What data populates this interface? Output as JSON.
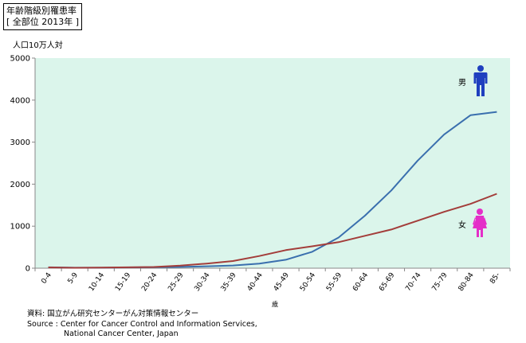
{
  "header": {
    "title": "年齢階級別罹患率",
    "subtitle": "[ 全部位 2013年 ]"
  },
  "colors": {
    "plot_bg": "#dbf5eb",
    "male": "#3a6fae",
    "female": "#a33d3a",
    "male_icon": "#1f3fbf",
    "female_icon": "#e42fc8"
  },
  "chart_data": {
    "type": "line",
    "title": "年齢階級別罹患率 [ 全部位 2013年 ]",
    "ylabel": "人口10万人対",
    "xlabel": "歳",
    "ylim": [
      0,
      5000
    ],
    "yticks": [
      0,
      1000,
      2000,
      3000,
      4000,
      5000
    ],
    "grid": false,
    "legend": "inline labels at line ends",
    "categories": [
      "0-4",
      "5-9",
      "10-14",
      "15-19",
      "20-24",
      "25-29",
      "30-34",
      "35-39",
      "40-44",
      "45-49",
      "50-54",
      "55-59",
      "60-64",
      "65-69",
      "70-74",
      "75-79",
      "80-84",
      "85-"
    ],
    "series": [
      {
        "name": "男",
        "values": [
          20,
          12,
          12,
          18,
          22,
          30,
          45,
          65,
          110,
          200,
          390,
          730,
          1250,
          1850,
          2560,
          3180,
          3640,
          3720
        ]
      },
      {
        "name": "女",
        "values": [
          18,
          10,
          14,
          20,
          28,
          60,
          110,
          170,
          290,
          430,
          520,
          620,
          770,
          920,
          1130,
          1340,
          1530,
          1770
        ]
      }
    ]
  },
  "source": {
    "line1": "資料:  国立がん研究センターがん対策情報センター",
    "line2": "Source : Center for Cancer Control and Information Services,",
    "line3": "National Cancer Center, Japan"
  }
}
